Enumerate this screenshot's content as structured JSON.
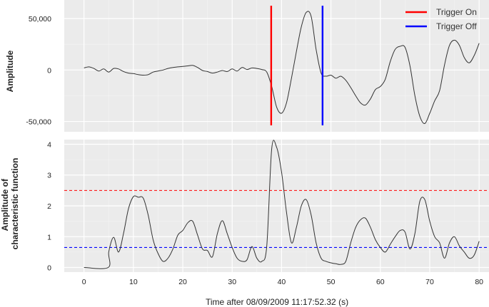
{
  "chart_data": [
    {
      "type": "line",
      "panel": "top",
      "ylabel": "Amplitude",
      "xlim": [
        -4,
        82
      ],
      "ylim": [
        -60000,
        68000
      ],
      "x_ticks": [
        0,
        10,
        20,
        30,
        40,
        50,
        60,
        70,
        80
      ],
      "y_ticks": [
        -50000,
        0,
        50000
      ],
      "y_tick_labels": [
        "-50,000",
        "0",
        "50,000"
      ],
      "grid": true,
      "legend": {
        "placement": "top-right",
        "entries": [
          {
            "label": "Trigger On",
            "color": "#ff0000"
          },
          {
            "label": "Trigger Off",
            "color": "#0000ff"
          }
        ]
      },
      "vlines": [
        {
          "x": 37.9,
          "color": "#ff0000",
          "name": "Trigger On"
        },
        {
          "x": 48.3,
          "color": "#0000ff",
          "name": "Trigger Off"
        }
      ],
      "series": [
        {
          "color": "#333333",
          "points": [
            [
              0,
              2000
            ],
            [
              1,
              3000
            ],
            [
              2,
              1500
            ],
            [
              3,
              -1000
            ],
            [
              4,
              1000
            ],
            [
              5,
              -2000
            ],
            [
              6,
              1500
            ],
            [
              7,
              1000
            ],
            [
              8,
              -1500
            ],
            [
              9,
              -3000
            ],
            [
              10,
              -3500
            ],
            [
              11,
              -4500
            ],
            [
              12,
              -5000
            ],
            [
              13,
              -4500
            ],
            [
              14,
              -2000
            ],
            [
              15,
              -1000
            ],
            [
              16,
              0
            ],
            [
              17,
              1500
            ],
            [
              18,
              2500
            ],
            [
              19,
              3000
            ],
            [
              20,
              3500
            ],
            [
              21,
              4000
            ],
            [
              22,
              4500
            ],
            [
              23,
              2500
            ],
            [
              24,
              -500
            ],
            [
              25,
              -1500
            ],
            [
              26,
              -3000
            ],
            [
              27,
              -2000
            ],
            [
              28,
              -500
            ],
            [
              29,
              -1500
            ],
            [
              30,
              1000
            ],
            [
              31,
              -1000
            ],
            [
              32,
              2500
            ],
            [
              33,
              500
            ],
            [
              34,
              2000
            ],
            [
              35,
              1500
            ],
            [
              36,
              500
            ],
            [
              37,
              -2000
            ],
            [
              38,
              -16000
            ],
            [
              39,
              -36000
            ],
            [
              40,
              -42000
            ],
            [
              41,
              -32000
            ],
            [
              42,
              -8000
            ],
            [
              43,
              18000
            ],
            [
              44,
              42000
            ],
            [
              45,
              56000
            ],
            [
              46,
              52000
            ],
            [
              47,
              20000
            ],
            [
              48,
              -3000
            ],
            [
              49,
              -6000
            ],
            [
              50,
              -5000
            ],
            [
              51,
              -8000
            ],
            [
              52,
              -6000
            ],
            [
              53,
              -10000
            ],
            [
              54,
              -17000
            ],
            [
              55,
              -25000
            ],
            [
              56,
              -32000
            ],
            [
              57,
              -34000
            ],
            [
              58,
              -28000
            ],
            [
              59,
              -19000
            ],
            [
              60,
              -16000
            ],
            [
              61,
              -9000
            ],
            [
              62,
              8000
            ],
            [
              63,
              20000
            ],
            [
              64,
              23000
            ],
            [
              65,
              22000
            ],
            [
              66,
              4000
            ],
            [
              67,
              -25000
            ],
            [
              68,
              -45000
            ],
            [
              69,
              -52000
            ],
            [
              70,
              -42000
            ],
            [
              71,
              -30000
            ],
            [
              72,
              -20000
            ],
            [
              73,
              5000
            ],
            [
              74,
              24000
            ],
            [
              75,
              29000
            ],
            [
              76,
              24000
            ],
            [
              77,
              12000
            ],
            [
              78,
              7000
            ],
            [
              79,
              14000
            ],
            [
              80,
              26000
            ]
          ]
        }
      ]
    },
    {
      "type": "line",
      "panel": "bottom",
      "ylabel": "Amplitude of characteristic function",
      "ylabel_lines": [
        "Amplitude of",
        "characteristic function"
      ],
      "xlabel": "Time after 08/09/2009 11:17:52.32 (s)",
      "xlim": [
        -4,
        82
      ],
      "ylim": [
        -0.15,
        4.15
      ],
      "x_ticks": [
        0,
        10,
        20,
        30,
        40,
        50,
        60,
        70,
        80
      ],
      "y_ticks": [
        0,
        1,
        2,
        3,
        4
      ],
      "grid": true,
      "hlines": [
        {
          "y": 2.5,
          "color": "#ff0000",
          "style": "dashed"
        },
        {
          "y": 0.65,
          "color": "#0000ff",
          "style": "dashed"
        }
      ],
      "series": [
        {
          "color": "#333333",
          "points": [
            [
              0,
              0
            ],
            [
              4.9,
              0
            ],
            [
              5,
              0.5
            ],
            [
              6,
              0.98
            ],
            [
              7,
              0.5
            ],
            [
              8,
              1.1
            ],
            [
              9,
              1.9
            ],
            [
              10,
              2.3
            ],
            [
              11,
              2.28
            ],
            [
              12,
              2.25
            ],
            [
              13,
              1.7
            ],
            [
              14,
              0.9
            ],
            [
              15,
              0.45
            ],
            [
              16,
              0.2
            ],
            [
              17,
              0.3
            ],
            [
              18,
              0.6
            ],
            [
              19,
              1.05
            ],
            [
              20,
              1.2
            ],
            [
              21,
              1.45
            ],
            [
              22,
              1.5
            ],
            [
              23,
              1.05
            ],
            [
              24,
              0.6
            ],
            [
              25,
              0.55
            ],
            [
              26,
              0.35
            ],
            [
              27,
              1.1
            ],
            [
              28,
              1.52
            ],
            [
              29,
              1.1
            ],
            [
              30,
              0.65
            ],
            [
              31,
              0.3
            ],
            [
              32,
              0.2
            ],
            [
              33,
              0.25
            ],
            [
              34,
              0.68
            ],
            [
              35,
              0.3
            ],
            [
              36,
              0.2
            ],
            [
              37,
              0.7
            ],
            [
              38,
              3.85
            ],
            [
              39,
              3.9
            ],
            [
              40,
              3.1
            ],
            [
              41,
              1.8
            ],
            [
              42,
              0.8
            ],
            [
              43,
              1.3
            ],
            [
              44,
              2.0
            ],
            [
              45,
              2.2
            ],
            [
              46,
              1.7
            ],
            [
              47,
              0.8
            ],
            [
              48,
              0.3
            ],
            [
              49,
              0.2
            ],
            [
              50,
              0.15
            ],
            [
              51,
              0.12
            ],
            [
              52,
              0.1
            ],
            [
              53,
              0.2
            ],
            [
              54,
              0.8
            ],
            [
              55,
              1.3
            ],
            [
              56,
              1.55
            ],
            [
              57,
              1.6
            ],
            [
              58,
              1.3
            ],
            [
              59,
              0.9
            ],
            [
              60,
              0.65
            ],
            [
              61,
              0.5
            ],
            [
              62,
              0.75
            ],
            [
              63,
              1.0
            ],
            [
              64,
              1.2
            ],
            [
              65,
              1.15
            ],
            [
              66,
              0.6
            ],
            [
              67,
              1.1
            ],
            [
              68,
              2.15
            ],
            [
              69,
              2.2
            ],
            [
              70,
              1.5
            ],
            [
              71,
              1.0
            ],
            [
              72,
              0.8
            ],
            [
              73,
              0.3
            ],
            [
              74,
              0.8
            ],
            [
              75,
              1.0
            ],
            [
              76,
              0.7
            ],
            [
              77,
              0.5
            ],
            [
              78,
              0.3
            ],
            [
              79,
              0.4
            ],
            [
              80,
              0.85
            ]
          ]
        }
      ]
    }
  ]
}
